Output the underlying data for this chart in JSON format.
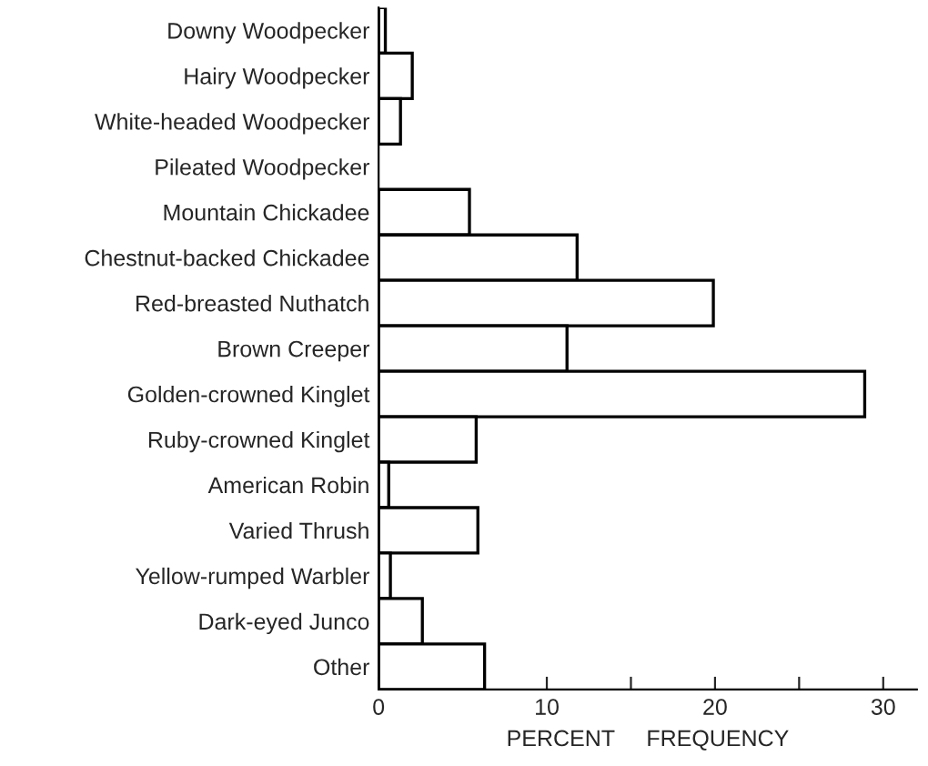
{
  "chart_data": {
    "type": "bar",
    "orientation": "horizontal",
    "xlabel": "PERCENT     FREQUENCY",
    "categories": [
      "Downy Woodpecker",
      "Hairy Woodpecker",
      "White-headed Woodpecker",
      "Pileated Woodpecker",
      "Mountain Chickadee",
      "Chestnut-backed Chickadee",
      "Red-breasted Nuthatch",
      "Brown Creeper",
      "Golden-crowned Kinglet",
      "Ruby-crowned Kinglet",
      "American Robin",
      "Varied Thrush",
      "Yellow-rumped Warbler",
      "Dark-eyed Junco",
      "Other"
    ],
    "values": [
      0.4,
      2.0,
      1.3,
      null,
      5.4,
      11.8,
      19.9,
      11.2,
      28.9,
      5.8,
      0.6,
      5.9,
      0.7,
      2.6,
      6.3
    ],
    "color": "#ffffff",
    "xlim": [
      0,
      32
    ],
    "xticks": [
      0,
      {
        "value": 5,
        "label": null
      },
      10,
      {
        "value": 15,
        "label": null
      },
      20,
      {
        "value": 25,
        "label": null
      },
      30
    ],
    "grid": false,
    "legend": false
  }
}
